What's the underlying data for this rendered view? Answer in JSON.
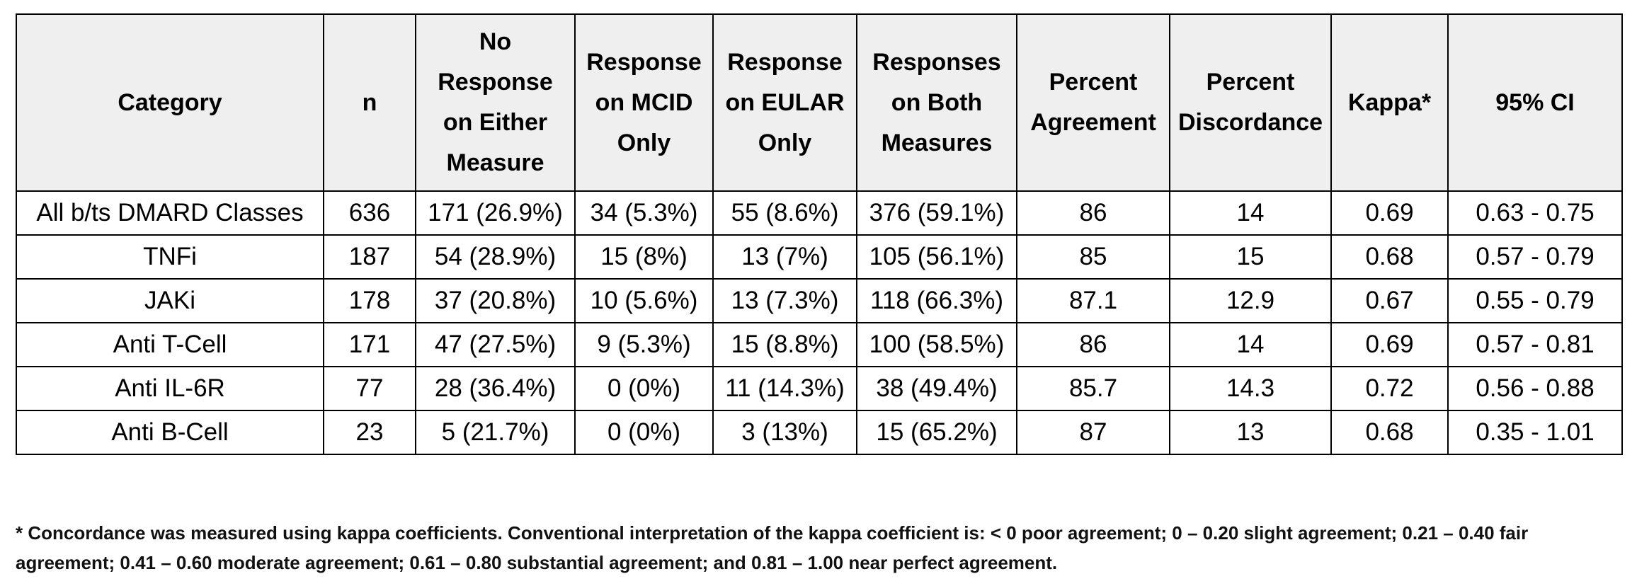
{
  "table": {
    "headers": [
      "Category",
      "n",
      "No Response on Either Measure",
      "Response on MCID Only",
      "Response on EULAR Only",
      "Responses on Both Measures",
      "Percent Agreement",
      "Percent Discordance",
      "Kappa*",
      "95% CI"
    ],
    "rows": [
      [
        "All b/ts DMARD Classes",
        "636",
        "171 (26.9%)",
        "34 (5.3%)",
        "55 (8.6%)",
        "376 (59.1%)",
        "86",
        "14",
        "0.69",
        "0.63 - 0.75"
      ],
      [
        "TNFi",
        "187",
        "54 (28.9%)",
        "15 (8%)",
        "13 (7%)",
        "105 (56.1%)",
        "85",
        "15",
        "0.68",
        "0.57 - 0.79"
      ],
      [
        "JAKi",
        "178",
        "37 (20.8%)",
        "10 (5.6%)",
        "13 (7.3%)",
        "118 (66.3%)",
        "87.1",
        "12.9",
        "0.67",
        "0.55 - 0.79"
      ],
      [
        "Anti T-Cell",
        "171",
        "47 (27.5%)",
        "9 (5.3%)",
        "15 (8.8%)",
        "100 (58.5%)",
        "86",
        "14",
        "0.69",
        "0.57 - 0.81"
      ],
      [
        "Anti IL-6R",
        "77",
        "28 (36.4%)",
        "0 (0%)",
        "11 (14.3%)",
        "38 (49.4%)",
        "85.7",
        "14.3",
        "0.72",
        "0.56 - 0.88"
      ],
      [
        "Anti B-Cell",
        "23",
        "5 (21.7%)",
        "0 (0%)",
        "3 (13%)",
        "15 (65.2%)",
        "87",
        "13",
        "0.68",
        "0.35 - 1.01"
      ]
    ]
  },
  "footnote": "* Concordance was measured using kappa coefficients.  Conventional interpretation of the kappa coefficient is: < 0 poor agreement; 0 – 0.20 slight agreement; 0.21 – 0.40 fair agreement; 0.41 – 0.60 moderate agreement; 0.61 – 0.80 substantial agreement; and 0.81 – 1.00 near perfect agreement.",
  "colors": {
    "header_background": "#efefef",
    "border": "#000000",
    "text": "#000000"
  }
}
